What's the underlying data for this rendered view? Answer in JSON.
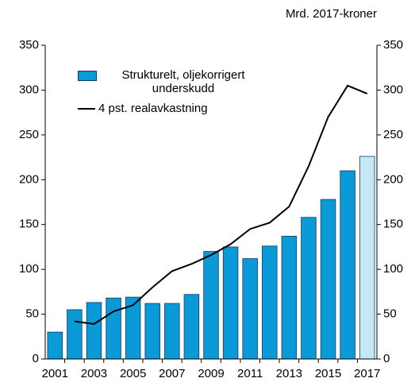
{
  "chart_data": {
    "type": "bar",
    "unit_label": "Mrd. 2017-kroner",
    "categories": [
      "2001",
      null,
      "2003",
      null,
      "2005",
      null,
      "2007",
      null,
      "2009",
      null,
      "2011",
      null,
      "2013",
      null,
      "2015",
      null,
      "2017"
    ],
    "series": [
      {
        "name": "Strukturelt, oljekorrigert underskudd",
        "type": "bar",
        "color": "#0a9ad7",
        "colors": [
          "#0a9ad7",
          "#0a9ad7",
          "#0a9ad7",
          "#0a9ad7",
          "#0a9ad7",
          "#0a9ad7",
          "#0a9ad7",
          "#0a9ad7",
          "#0a9ad7",
          "#0a9ad7",
          "#0a9ad7",
          "#0a9ad7",
          "#0a9ad7",
          "#0a9ad7",
          "#0a9ad7",
          "#0a9ad7",
          "#c5e8f7"
        ],
        "values": [
          30,
          55,
          63,
          68,
          69,
          62,
          62,
          72,
          120,
          125,
          112,
          126,
          137,
          158,
          178,
          210,
          226
        ]
      },
      {
        "name": "4 pst. realavkastning",
        "type": "line",
        "color": "#000000",
        "values": [
          null,
          42,
          39,
          53,
          60,
          80,
          98,
          106,
          116,
          128,
          145,
          152,
          170,
          215,
          270,
          305,
          296
        ]
      }
    ],
    "ylim": [
      0,
      350
    ],
    "yticks": [
      0,
      50,
      100,
      150,
      200,
      250,
      300,
      350
    ],
    "y2lim": [
      0,
      350
    ],
    "y2ticks": [
      0,
      50,
      100,
      150,
      200,
      250,
      300,
      350
    ],
    "grid": false
  }
}
